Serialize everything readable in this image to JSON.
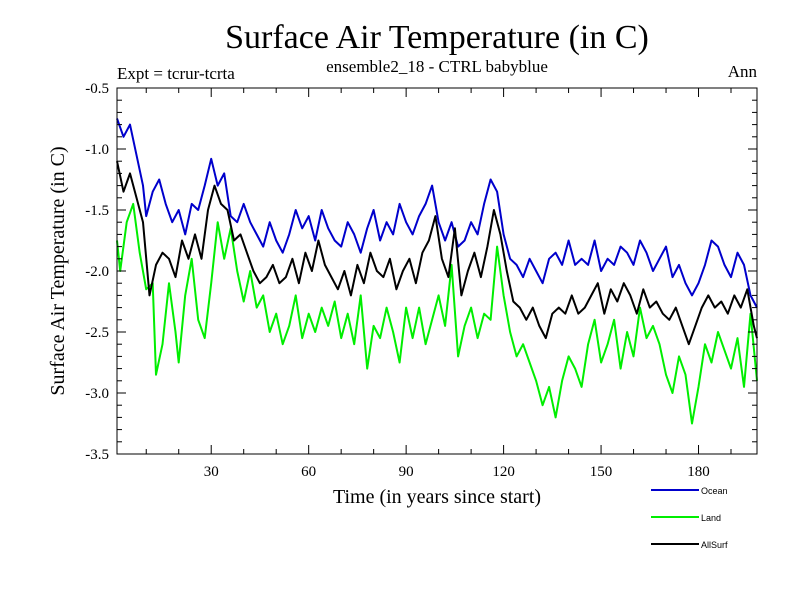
{
  "chart_data": {
    "type": "line",
    "title": "Surface Air Temperature (in C)",
    "subtitle": "ensemble2_18 - CTRL babyblue",
    "left_label": "Expt = tcrur-tcrta",
    "right_label": "Ann",
    "xlabel": "Time (in years since start)",
    "ylabel": "Surface Air Temperature (in C)",
    "xlim": [
      1,
      198
    ],
    "ylim": [
      -3.5,
      -0.5
    ],
    "xticks": [
      30,
      60,
      90,
      120,
      150,
      180
    ],
    "yticks": [
      -0.5,
      -1.0,
      -1.5,
      -2.0,
      -2.5,
      -3.0,
      -3.5
    ],
    "ytick_labels": [
      "-0.5",
      "-1.0",
      "-1.5",
      "-2.0",
      "-2.5",
      "-3.0",
      "-3.5"
    ],
    "grid": false,
    "legend_position": "bottom-right",
    "series": [
      {
        "name": "Ocean",
        "color": "#0000cc",
        "points": [
          [
            1,
            -0.75
          ],
          [
            3,
            -0.9
          ],
          [
            5,
            -0.8
          ],
          [
            7,
            -1.05
          ],
          [
            9,
            -1.3
          ],
          [
            10,
            -1.55
          ],
          [
            12,
            -1.35
          ],
          [
            14,
            -1.25
          ],
          [
            16,
            -1.45
          ],
          [
            18,
            -1.6
          ],
          [
            20,
            -1.5
          ],
          [
            22,
            -1.7
          ],
          [
            24,
            -1.45
          ],
          [
            26,
            -1.5
          ],
          [
            28,
            -1.3
          ],
          [
            30,
            -1.08
          ],
          [
            32,
            -1.3
          ],
          [
            34,
            -1.2
          ],
          [
            36,
            -1.55
          ],
          [
            38,
            -1.6
          ],
          [
            40,
            -1.45
          ],
          [
            42,
            -1.6
          ],
          [
            44,
            -1.7
          ],
          [
            46,
            -1.8
          ],
          [
            48,
            -1.6
          ],
          [
            50,
            -1.75
          ],
          [
            52,
            -1.85
          ],
          [
            54,
            -1.7
          ],
          [
            56,
            -1.5
          ],
          [
            58,
            -1.65
          ],
          [
            60,
            -1.55
          ],
          [
            62,
            -1.75
          ],
          [
            64,
            -1.5
          ],
          [
            66,
            -1.65
          ],
          [
            68,
            -1.75
          ],
          [
            70,
            -1.8
          ],
          [
            72,
            -1.6
          ],
          [
            74,
            -1.7
          ],
          [
            76,
            -1.85
          ],
          [
            78,
            -1.65
          ],
          [
            80,
            -1.5
          ],
          [
            82,
            -1.75
          ],
          [
            84,
            -1.6
          ],
          [
            86,
            -1.7
          ],
          [
            88,
            -1.45
          ],
          [
            90,
            -1.6
          ],
          [
            92,
            -1.7
          ],
          [
            94,
            -1.55
          ],
          [
            96,
            -1.45
          ],
          [
            98,
            -1.3
          ],
          [
            100,
            -1.6
          ],
          [
            102,
            -1.75
          ],
          [
            104,
            -1.6
          ],
          [
            106,
            -1.8
          ],
          [
            108,
            -1.75
          ],
          [
            110,
            -1.6
          ],
          [
            112,
            -1.7
          ],
          [
            114,
            -1.45
          ],
          [
            116,
            -1.25
          ],
          [
            118,
            -1.35
          ],
          [
            120,
            -1.7
          ],
          [
            122,
            -1.9
          ],
          [
            124,
            -1.95
          ],
          [
            126,
            -2.05
          ],
          [
            128,
            -1.9
          ],
          [
            130,
            -2.0
          ],
          [
            132,
            -2.1
          ],
          [
            134,
            -1.9
          ],
          [
            136,
            -1.85
          ],
          [
            138,
            -1.95
          ],
          [
            140,
            -1.75
          ],
          [
            142,
            -1.95
          ],
          [
            144,
            -1.9
          ],
          [
            146,
            -1.95
          ],
          [
            148,
            -1.75
          ],
          [
            150,
            -2.0
          ],
          [
            152,
            -1.9
          ],
          [
            154,
            -1.95
          ],
          [
            156,
            -1.8
          ],
          [
            158,
            -1.85
          ],
          [
            160,
            -1.95
          ],
          [
            162,
            -1.75
          ],
          [
            164,
            -1.85
          ],
          [
            166,
            -2.0
          ],
          [
            168,
            -1.9
          ],
          [
            170,
            -1.8
          ],
          [
            172,
            -2.05
          ],
          [
            174,
            -1.95
          ],
          [
            176,
            -2.1
          ],
          [
            178,
            -2.2
          ],
          [
            180,
            -2.1
          ],
          [
            182,
            -1.95
          ],
          [
            184,
            -1.75
          ],
          [
            186,
            -1.8
          ],
          [
            188,
            -1.95
          ],
          [
            190,
            -2.05
          ],
          [
            192,
            -1.85
          ],
          [
            194,
            -1.95
          ],
          [
            196,
            -2.2
          ],
          [
            198,
            -2.3
          ]
        ]
      },
      {
        "name": "Land",
        "color": "#00ee00",
        "points": [
          [
            1,
            -1.75
          ],
          [
            2,
            -2.0
          ],
          [
            4,
            -1.6
          ],
          [
            6,
            -1.45
          ],
          [
            8,
            -1.85
          ],
          [
            10,
            -2.15
          ],
          [
            12,
            -2.1
          ],
          [
            13,
            -2.85
          ],
          [
            15,
            -2.6
          ],
          [
            17,
            -2.1
          ],
          [
            19,
            -2.5
          ],
          [
            20,
            -2.75
          ],
          [
            22,
            -2.2
          ],
          [
            24,
            -1.9
          ],
          [
            26,
            -2.4
          ],
          [
            28,
            -2.55
          ],
          [
            30,
            -2.1
          ],
          [
            32,
            -1.6
          ],
          [
            34,
            -1.9
          ],
          [
            36,
            -1.65
          ],
          [
            38,
            -2.0
          ],
          [
            40,
            -2.25
          ],
          [
            42,
            -2.0
          ],
          [
            44,
            -2.3
          ],
          [
            46,
            -2.2
          ],
          [
            48,
            -2.5
          ],
          [
            50,
            -2.35
          ],
          [
            52,
            -2.6
          ],
          [
            54,
            -2.45
          ],
          [
            56,
            -2.2
          ],
          [
            58,
            -2.55
          ],
          [
            60,
            -2.35
          ],
          [
            62,
            -2.5
          ],
          [
            64,
            -2.3
          ],
          [
            66,
            -2.45
          ],
          [
            68,
            -2.25
          ],
          [
            70,
            -2.55
          ],
          [
            72,
            -2.35
          ],
          [
            74,
            -2.6
          ],
          [
            76,
            -2.2
          ],
          [
            78,
            -2.8
          ],
          [
            80,
            -2.45
          ],
          [
            82,
            -2.55
          ],
          [
            84,
            -2.3
          ],
          [
            86,
            -2.5
          ],
          [
            88,
            -2.75
          ],
          [
            90,
            -2.3
          ],
          [
            92,
            -2.55
          ],
          [
            94,
            -2.3
          ],
          [
            96,
            -2.6
          ],
          [
            98,
            -2.4
          ],
          [
            100,
            -2.2
          ],
          [
            102,
            -2.45
          ],
          [
            104,
            -1.95
          ],
          [
            106,
            -2.7
          ],
          [
            108,
            -2.45
          ],
          [
            110,
            -2.3
          ],
          [
            112,
            -2.55
          ],
          [
            114,
            -2.35
          ],
          [
            116,
            -2.4
          ],
          [
            118,
            -1.8
          ],
          [
            120,
            -2.2
          ],
          [
            122,
            -2.5
          ],
          [
            124,
            -2.7
          ],
          [
            126,
            -2.6
          ],
          [
            128,
            -2.75
          ],
          [
            130,
            -2.9
          ],
          [
            132,
            -3.1
          ],
          [
            134,
            -2.95
          ],
          [
            136,
            -3.2
          ],
          [
            138,
            -2.9
          ],
          [
            140,
            -2.7
          ],
          [
            142,
            -2.8
          ],
          [
            144,
            -2.95
          ],
          [
            146,
            -2.6
          ],
          [
            148,
            -2.4
          ],
          [
            150,
            -2.75
          ],
          [
            152,
            -2.6
          ],
          [
            154,
            -2.4
          ],
          [
            156,
            -2.8
          ],
          [
            158,
            -2.5
          ],
          [
            160,
            -2.7
          ],
          [
            162,
            -2.3
          ],
          [
            164,
            -2.55
          ],
          [
            166,
            -2.45
          ],
          [
            168,
            -2.6
          ],
          [
            170,
            -2.85
          ],
          [
            172,
            -3.0
          ],
          [
            174,
            -2.7
          ],
          [
            176,
            -2.85
          ],
          [
            178,
            -3.25
          ],
          [
            180,
            -2.95
          ],
          [
            182,
            -2.6
          ],
          [
            184,
            -2.75
          ],
          [
            186,
            -2.5
          ],
          [
            188,
            -2.65
          ],
          [
            190,
            -2.8
          ],
          [
            192,
            -2.55
          ],
          [
            194,
            -2.95
          ],
          [
            196,
            -2.35
          ],
          [
            198,
            -2.9
          ]
        ]
      },
      {
        "name": "AllSurf",
        "color": "#000000",
        "points": [
          [
            1,
            -1.1
          ],
          [
            3,
            -1.35
          ],
          [
            5,
            -1.2
          ],
          [
            7,
            -1.4
          ],
          [
            9,
            -1.6
          ],
          [
            11,
            -2.2
          ],
          [
            13,
            -1.95
          ],
          [
            15,
            -1.85
          ],
          [
            17,
            -1.9
          ],
          [
            19,
            -2.05
          ],
          [
            21,
            -1.75
          ],
          [
            23,
            -1.9
          ],
          [
            25,
            -1.7
          ],
          [
            27,
            -1.9
          ],
          [
            29,
            -1.5
          ],
          [
            31,
            -1.3
          ],
          [
            33,
            -1.45
          ],
          [
            35,
            -1.5
          ],
          [
            37,
            -1.75
          ],
          [
            39,
            -1.7
          ],
          [
            41,
            -1.85
          ],
          [
            43,
            -2.0
          ],
          [
            45,
            -2.1
          ],
          [
            47,
            -2.05
          ],
          [
            49,
            -1.95
          ],
          [
            51,
            -2.1
          ],
          [
            53,
            -2.05
          ],
          [
            55,
            -1.9
          ],
          [
            57,
            -2.1
          ],
          [
            59,
            -1.85
          ],
          [
            61,
            -2.0
          ],
          [
            63,
            -1.75
          ],
          [
            65,
            -1.95
          ],
          [
            67,
            -2.05
          ],
          [
            69,
            -2.15
          ],
          [
            71,
            -2.0
          ],
          [
            73,
            -2.2
          ],
          [
            75,
            -1.95
          ],
          [
            77,
            -2.1
          ],
          [
            79,
            -1.85
          ],
          [
            81,
            -2.0
          ],
          [
            83,
            -2.05
          ],
          [
            85,
            -1.9
          ],
          [
            87,
            -2.15
          ],
          [
            89,
            -2.0
          ],
          [
            91,
            -1.9
          ],
          [
            93,
            -2.1
          ],
          [
            95,
            -1.85
          ],
          [
            97,
            -1.75
          ],
          [
            99,
            -1.55
          ],
          [
            101,
            -1.9
          ],
          [
            103,
            -2.05
          ],
          [
            105,
            -1.65
          ],
          [
            107,
            -2.2
          ],
          [
            109,
            -2.0
          ],
          [
            111,
            -1.85
          ],
          [
            113,
            -2.05
          ],
          [
            115,
            -1.8
          ],
          [
            117,
            -1.5
          ],
          [
            119,
            -1.7
          ],
          [
            121,
            -2.0
          ],
          [
            123,
            -2.25
          ],
          [
            125,
            -2.3
          ],
          [
            127,
            -2.4
          ],
          [
            129,
            -2.3
          ],
          [
            131,
            -2.45
          ],
          [
            133,
            -2.55
          ],
          [
            135,
            -2.35
          ],
          [
            137,
            -2.3
          ],
          [
            139,
            -2.35
          ],
          [
            141,
            -2.2
          ],
          [
            143,
            -2.35
          ],
          [
            145,
            -2.3
          ],
          [
            147,
            -2.2
          ],
          [
            149,
            -2.1
          ],
          [
            151,
            -2.35
          ],
          [
            153,
            -2.15
          ],
          [
            155,
            -2.25
          ],
          [
            157,
            -2.1
          ],
          [
            159,
            -2.2
          ],
          [
            161,
            -2.35
          ],
          [
            163,
            -2.15
          ],
          [
            165,
            -2.3
          ],
          [
            167,
            -2.25
          ],
          [
            169,
            -2.35
          ],
          [
            171,
            -2.4
          ],
          [
            173,
            -2.3
          ],
          [
            175,
            -2.45
          ],
          [
            177,
            -2.6
          ],
          [
            179,
            -2.45
          ],
          [
            181,
            -2.3
          ],
          [
            183,
            -2.2
          ],
          [
            185,
            -2.3
          ],
          [
            187,
            -2.25
          ],
          [
            189,
            -2.35
          ],
          [
            191,
            -2.2
          ],
          [
            193,
            -2.3
          ],
          [
            195,
            -2.15
          ],
          [
            197,
            -2.45
          ],
          [
            198,
            -2.55
          ]
        ]
      }
    ]
  }
}
